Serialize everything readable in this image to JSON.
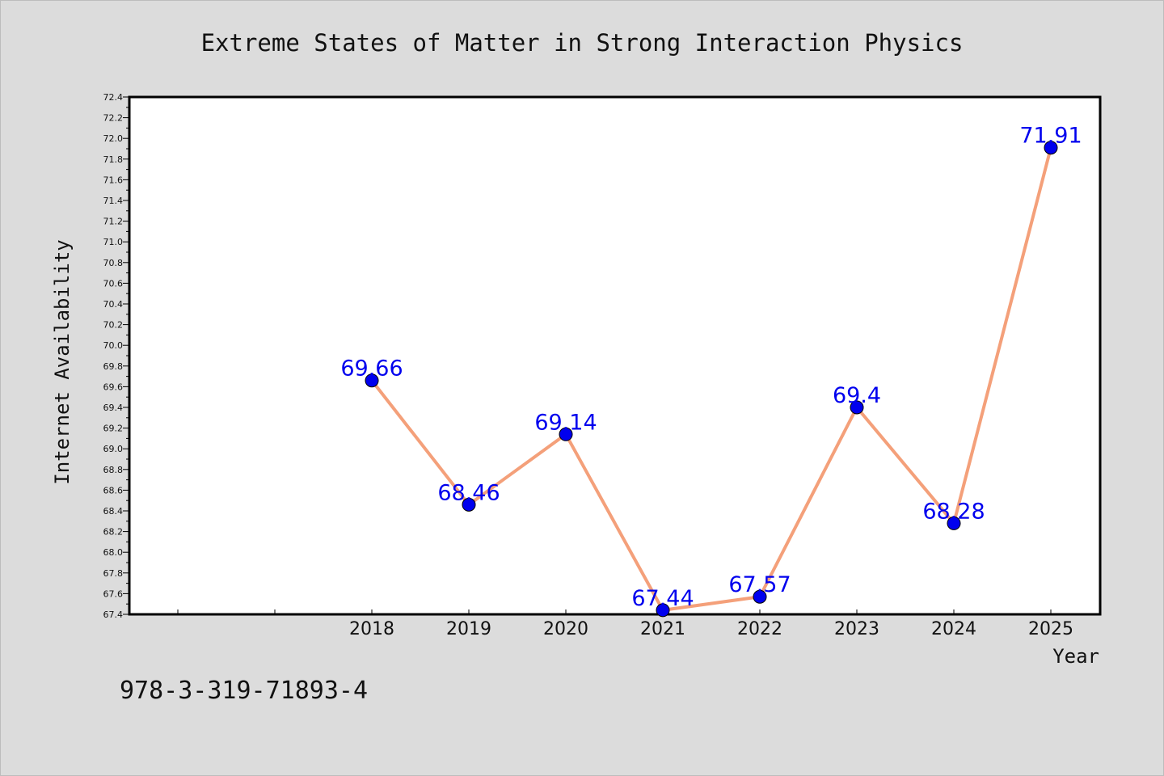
{
  "chart_data": {
    "type": "line",
    "title": "Extreme States of Matter in Strong Interaction Physics",
    "xlabel": "Year",
    "ylabel": "Internet Availability",
    "x": [
      "2018",
      "2019",
      "2020",
      "2021",
      "2022",
      "2023",
      "2024",
      "2025"
    ],
    "series": [
      {
        "values": [
          69.66,
          68.46,
          69.14,
          67.44,
          67.57,
          69.4,
          68.28,
          71.91
        ],
        "labels": [
          "69.66",
          "68.46",
          "69.14",
          "67.44",
          "67.57",
          "69.4",
          "68.28",
          "71.91"
        ]
      }
    ],
    "ylim": [
      67.4,
      72.4
    ],
    "y_ticks": [
      "67.4",
      "67.6",
      "67.8",
      "68.0",
      "68.2",
      "68.4",
      "68.6",
      "68.8",
      "69.0",
      "69.2",
      "69.4",
      "69.6",
      "69.8",
      "70.0",
      "70.2",
      "70.4",
      "70.6",
      "70.8",
      "71.0",
      "71.2",
      "71.4",
      "71.6",
      "71.8",
      "72.0",
      "72.2",
      "72.4"
    ],
    "grid": false,
    "colors": {
      "line": "#f4a07a",
      "marker": "#0000ee",
      "label": "#0000ee",
      "background": "#dcdcdc",
      "plot_background": "#ffffff"
    }
  },
  "footer": {
    "isbn": "978-3-319-71893-4"
  }
}
